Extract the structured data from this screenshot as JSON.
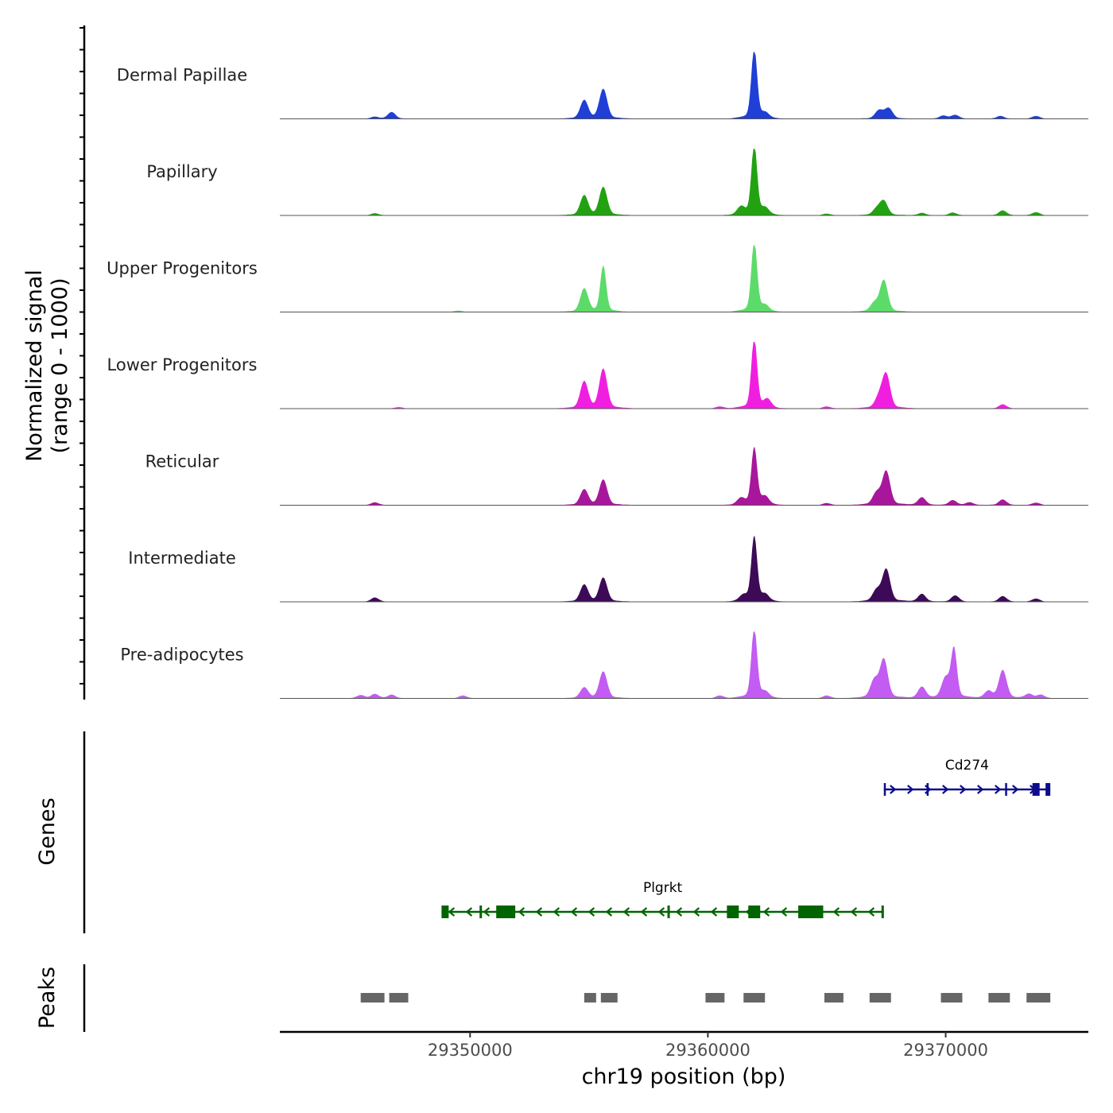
{
  "chart_data": {
    "type": "area",
    "title": "",
    "xlabel": "chr19 position (bp)",
    "ylabel_line1": "Normalized signal",
    "ylabel_line2": "(range 0 - 1000)",
    "xlim": [
      29342000,
      29376000
    ],
    "ylim": [
      0,
      1000
    ],
    "x_ticks": [
      29350000,
      29360000,
      29370000
    ],
    "x_tick_labels": [
      "29350000",
      "29360000",
      "29370000"
    ],
    "gene_panel_label": "Genes",
    "peak_panel_label": "Peaks",
    "series": [
      {
        "name": "Dermal Papillae",
        "color": "#1f3fd6",
        "peaks": [
          [
            29346000,
            28
          ],
          [
            29346700,
            95
          ],
          [
            29354800,
            260
          ],
          [
            29355600,
            420
          ],
          [
            29361950,
            1000
          ],
          [
            29362400,
            70
          ],
          [
            29367200,
            120
          ],
          [
            29367600,
            150
          ],
          [
            29369900,
            45
          ],
          [
            29370400,
            55
          ],
          [
            29372300,
            40
          ],
          [
            29373800,
            40
          ]
        ]
      },
      {
        "name": "Papillary",
        "color": "#22a211",
        "peaks": [
          [
            29346000,
            30
          ],
          [
            29354800,
            280
          ],
          [
            29355600,
            400
          ],
          [
            29361400,
            110
          ],
          [
            29361950,
            1000
          ],
          [
            29362400,
            90
          ],
          [
            29365000,
            25
          ],
          [
            29367100,
            90
          ],
          [
            29367400,
            200
          ],
          [
            29369000,
            35
          ],
          [
            29370300,
            40
          ],
          [
            29372400,
            70
          ],
          [
            29373800,
            45
          ]
        ]
      },
      {
        "name": "Upper Progenitors",
        "color": "#5ddb6a",
        "peaks": [
          [
            29349500,
            20
          ],
          [
            29354800,
            330
          ],
          [
            29355600,
            650
          ],
          [
            29361950,
            1000
          ],
          [
            29362400,
            80
          ],
          [
            29367000,
            120
          ],
          [
            29367400,
            450
          ]
        ]
      },
      {
        "name": "Lower Progenitors",
        "color": "#f01fe0",
        "peaks": [
          [
            29347000,
            20
          ],
          [
            29354800,
            380
          ],
          [
            29355600,
            560
          ],
          [
            29360500,
            30
          ],
          [
            29361950,
            1000
          ],
          [
            29362500,
            120
          ],
          [
            29365000,
            30
          ],
          [
            29367200,
            160
          ],
          [
            29367500,
            480
          ],
          [
            29372400,
            60
          ]
        ]
      },
      {
        "name": "Reticular",
        "color": "#a8179b",
        "peaks": [
          [
            29346000,
            40
          ],
          [
            29354800,
            220
          ],
          [
            29355600,
            360
          ],
          [
            29361400,
            90
          ],
          [
            29361950,
            820
          ],
          [
            29362400,
            110
          ],
          [
            29365000,
            30
          ],
          [
            29367100,
            170
          ],
          [
            29367500,
            480
          ],
          [
            29369000,
            110
          ],
          [
            29370300,
            70
          ],
          [
            29371000,
            40
          ],
          [
            29372400,
            80
          ],
          [
            29373800,
            35
          ]
        ]
      },
      {
        "name": "Intermediate",
        "color": "#3d0a57",
        "peaks": [
          [
            29346000,
            60
          ],
          [
            29354800,
            240
          ],
          [
            29355600,
            340
          ],
          [
            29361500,
            80
          ],
          [
            29361950,
            930
          ],
          [
            29362400,
            90
          ],
          [
            29367100,
            160
          ],
          [
            29367500,
            460
          ],
          [
            29369000,
            110
          ],
          [
            29370400,
            90
          ],
          [
            29372400,
            80
          ],
          [
            29373800,
            45
          ]
        ]
      },
      {
        "name": "Pre-adipocytes",
        "color": "#c25cf2",
        "peaks": [
          [
            29345400,
            45
          ],
          [
            29346000,
            60
          ],
          [
            29346700,
            50
          ],
          [
            29349700,
            40
          ],
          [
            29354800,
            150
          ],
          [
            29355600,
            380
          ],
          [
            29360500,
            40
          ],
          [
            29361950,
            1000
          ],
          [
            29362400,
            80
          ],
          [
            29365000,
            40
          ],
          [
            29367000,
            250
          ],
          [
            29367400,
            550
          ],
          [
            29369000,
            160
          ],
          [
            29370000,
            280
          ],
          [
            29370350,
            700
          ],
          [
            29371800,
            100
          ],
          [
            29372400,
            400
          ],
          [
            29373500,
            60
          ],
          [
            29374000,
            50
          ]
        ]
      }
    ],
    "genes": [
      {
        "name": "Cd274",
        "strand": "+",
        "color": "#0d0d8c",
        "start": 29367400,
        "end": 29374400,
        "exons": [
          [
            29367400,
            29367450
          ],
          [
            29369200,
            29369250
          ],
          [
            29372500,
            29372550
          ],
          [
            29373650,
            29373950
          ],
          [
            29374200,
            29374400
          ]
        ]
      },
      {
        "name": "Plgrkt",
        "strand": "-",
        "color": "#006400",
        "start": 29348800,
        "end": 29367400,
        "exons": [
          [
            29348800,
            29349100
          ],
          [
            29350400,
            29350500
          ],
          [
            29351100,
            29351900
          ],
          [
            29358300,
            29358400
          ],
          [
            29360800,
            29361300
          ],
          [
            29361700,
            29362200
          ],
          [
            29363800,
            29364850
          ],
          [
            29367300,
            29367400
          ]
        ]
      }
    ],
    "peaks_regions": [
      [
        29345400,
        29346400
      ],
      [
        29346600,
        29347400
      ],
      [
        29354800,
        29355300
      ],
      [
        29355500,
        29356200
      ],
      [
        29359900,
        29360700
      ],
      [
        29361500,
        29362400
      ],
      [
        29364900,
        29365700
      ],
      [
        29366800,
        29367700
      ],
      [
        29369800,
        29370700
      ],
      [
        29371800,
        29372700
      ],
      [
        29373400,
        29374400
      ]
    ]
  }
}
